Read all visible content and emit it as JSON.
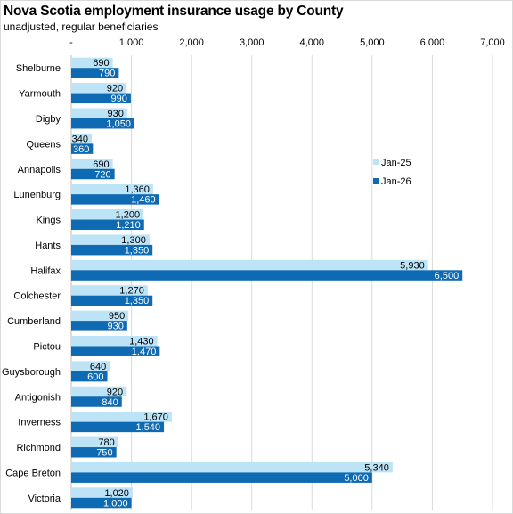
{
  "chart_data": {
    "type": "bar",
    "orientation": "horizontal",
    "title": "Nova Scotia employment insurance usage by County",
    "subtitle": "unadjusted, regular beneficiaries",
    "categories": [
      "Shelburne",
      "Yarmouth",
      "Digby",
      "Queens",
      "Annapolis",
      "Lunenburg",
      "Kings",
      "Hants",
      "Halifax",
      "Colchester",
      "Cumberland",
      "Pictou",
      "Guysborough",
      "Antigonish",
      "Inverness",
      "Richmond",
      "Cape Breton",
      "Victoria"
    ],
    "series": [
      {
        "name": "Jan-25",
        "color": "#bde3f7",
        "values": [
          690,
          920,
          930,
          340,
          690,
          1360,
          1200,
          1300,
          5930,
          1270,
          950,
          1430,
          640,
          920,
          1670,
          780,
          5340,
          1020
        ],
        "labels": [
          "690",
          "920",
          "930",
          "340",
          "690",
          "1,360",
          "1,200",
          "1,300",
          "5,930",
          "1,270",
          "950",
          "1,430",
          "640",
          "920",
          "1,670",
          "780",
          "5,340",
          "1,020"
        ]
      },
      {
        "name": "Jan-26",
        "color": "#0f6ab4",
        "values": [
          790,
          990,
          1050,
          360,
          720,
          1460,
          1210,
          1350,
          6500,
          1350,
          930,
          1470,
          600,
          840,
          1540,
          750,
          5000,
          1000
        ],
        "labels": [
          "790",
          "990",
          "1,050",
          "360",
          "720",
          "1,460",
          "1,210",
          "1,350",
          "6,500",
          "1,350",
          "930",
          "1,470",
          "600",
          "840",
          "1,540",
          "750",
          "5,000",
          "1,000"
        ]
      }
    ],
    "x_ticks": [
      "-",
      "1,000",
      "2,000",
      "3,000",
      "4,000",
      "5,000",
      "6,000",
      "7,000"
    ],
    "xlim": [
      0,
      7000
    ],
    "xaxis_position": "top",
    "grid": true,
    "legend_position": "right"
  }
}
